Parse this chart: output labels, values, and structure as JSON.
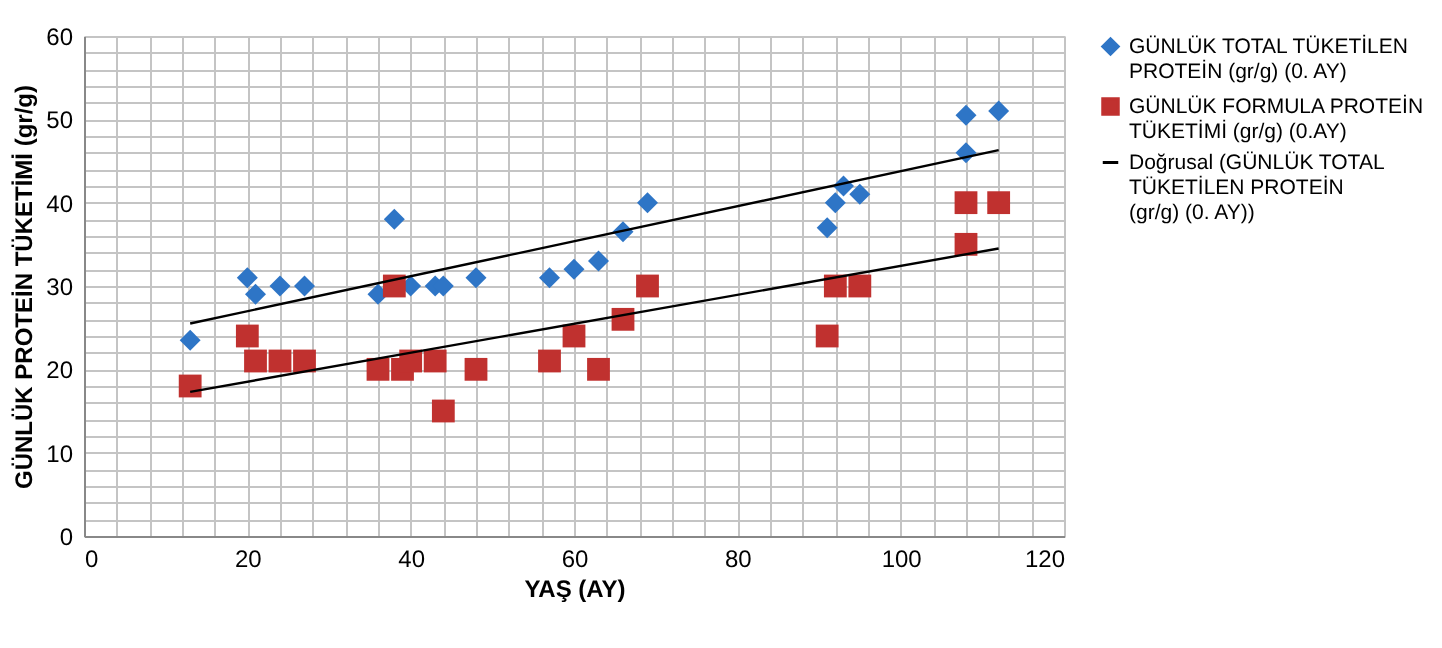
{
  "chart_data": {
    "type": "scatter",
    "xlabel": "YAŞ (AY)",
    "ylabel": "GÜNLÜK PROTEİN TÜKETİMİ (gr/g)",
    "xlim": [
      0,
      120
    ],
    "ylim": [
      0,
      60
    ],
    "xticks": [
      0,
      {
        "value": 4,
        "label": null
      },
      {
        "value": 8,
        "label": null
      },
      {
        "value": 12,
        "label": null
      },
      {
        "value": 16,
        "label": null
      },
      20,
      {
        "value": 24,
        "label": null
      },
      {
        "value": 28,
        "label": null
      },
      {
        "value": 32,
        "label": null
      },
      {
        "value": 36,
        "label": null
      },
      40,
      {
        "value": 44,
        "label": null
      },
      {
        "value": 48,
        "label": null
      },
      {
        "value": 52,
        "label": null
      },
      {
        "value": 56,
        "label": null
      },
      60,
      {
        "value": 64,
        "label": null
      },
      {
        "value": 68,
        "label": null
      },
      {
        "value": 72,
        "label": null
      },
      {
        "value": 76,
        "label": null
      },
      80,
      {
        "value": 84,
        "label": null
      },
      {
        "value": 88,
        "label": null
      },
      {
        "value": 92,
        "label": null
      },
      {
        "value": 96,
        "label": null
      },
      100,
      {
        "value": 104,
        "label": null
      },
      {
        "value": 108,
        "label": null
      },
      {
        "value": 112,
        "label": null
      },
      {
        "value": 116,
        "label": null
      },
      120
    ],
    "yticks": [
      0,
      {
        "value": 2,
        "label": null
      },
      {
        "value": 4,
        "label": null
      },
      {
        "value": 6,
        "label": null
      },
      {
        "value": 8,
        "label": null
      },
      10,
      {
        "value": 12,
        "label": null
      },
      {
        "value": 14,
        "label": null
      },
      {
        "value": 16,
        "label": null
      },
      {
        "value": 18,
        "label": null
      },
      20,
      {
        "value": 22,
        "label": null
      },
      {
        "value": 24,
        "label": null
      },
      {
        "value": 26,
        "label": null
      },
      {
        "value": 28,
        "label": null
      },
      30,
      {
        "value": 32,
        "label": null
      },
      {
        "value": 34,
        "label": null
      },
      {
        "value": 36,
        "label": null
      },
      {
        "value": 38,
        "label": null
      },
      40,
      {
        "value": 42,
        "label": null
      },
      {
        "value": 44,
        "label": null
      },
      {
        "value": 46,
        "label": null
      },
      {
        "value": 48,
        "label": null
      },
      50,
      {
        "value": 52,
        "label": null
      },
      {
        "value": 54,
        "label": null
      },
      {
        "value": 56,
        "label": null
      },
      {
        "value": 58,
        "label": null
      },
      60
    ],
    "grid": true,
    "legend": "right",
    "series": [
      {
        "name": "GÜNLÜK TOTAL TÜKETİLEN PROTEİN (gr/g) (0. AY)",
        "marker": "diamond",
        "color": "#2e75c6",
        "x": [
          13,
          20,
          21,
          24,
          27,
          36,
          38,
          40,
          43,
          44,
          48,
          57,
          60,
          63,
          66,
          69,
          91,
          92,
          93,
          95,
          108,
          108,
          112
        ],
        "values": [
          23.5,
          31,
          29,
          30,
          30,
          29,
          38,
          30,
          30,
          30,
          31,
          31,
          32,
          33,
          36.5,
          40,
          37,
          40,
          42,
          41,
          50.5,
          46,
          51
        ]
      },
      {
        "name": "GÜNLÜK FORMULA PROTEİN TÜKETİMİ (gr/g) (0.AY)",
        "marker": "square",
        "color": "#c0312f",
        "x": [
          13,
          20,
          21,
          24,
          27,
          36,
          38,
          39,
          40,
          43,
          44,
          48,
          57,
          60,
          63,
          66,
          69,
          91,
          92,
          95,
          108,
          108,
          112
        ],
        "values": [
          18,
          24,
          21,
          21,
          21,
          20,
          30,
          20,
          21,
          21,
          15,
          20,
          21,
          24,
          20,
          26,
          30,
          24,
          30,
          30,
          40,
          35,
          40
        ]
      },
      {
        "name": "Doğrusal (GÜNLÜK TOTAL TÜKETİLEN PROTEİN (gr/g) (0. AY))",
        "type": "line",
        "color": "#000000",
        "x": [
          13,
          112
        ],
        "values": [
          25.5,
          46.3
        ]
      },
      {
        "type": "line",
        "color": "#000000",
        "x": [
          13,
          112
        ],
        "values": [
          17.3,
          34.5
        ]
      }
    ]
  }
}
